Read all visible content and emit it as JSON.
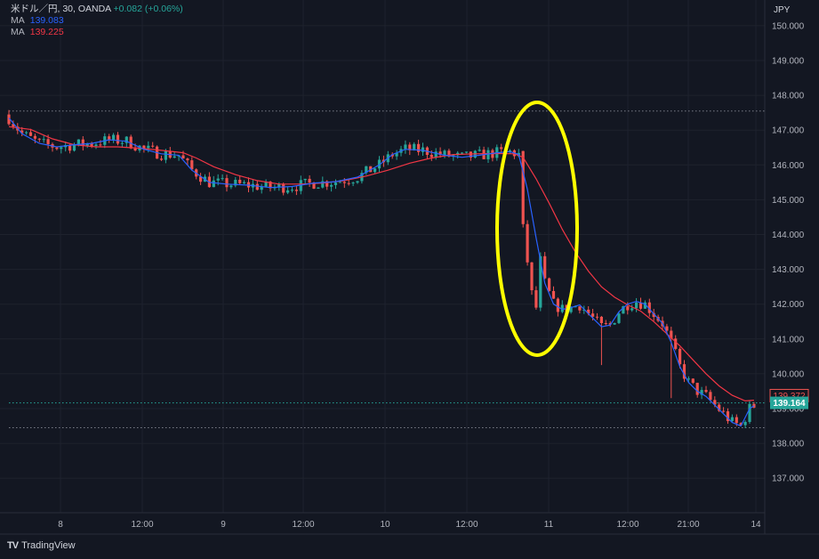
{
  "header": {
    "symbol": "米ドル／円, 30, OANDA",
    "change": "+0.082 (+0.06%)",
    "ma1_label": "MA",
    "ma1_value": "139.083",
    "ma2_label": "MA",
    "ma2_value": "139.225"
  },
  "brand": {
    "logo": "TV",
    "name": "TradingView"
  },
  "colors": {
    "up": "#26a69a",
    "down": "#ef5350",
    "ma_fast": "#2962ff",
    "ma_slow": "#f23645",
    "highlight": "#ffff00",
    "bg": "#131722"
  },
  "chart_data": {
    "type": "candlestick",
    "currency": "JPY",
    "ylim": [
      136.5,
      150.3
    ],
    "y_ticks": [
      "137.000",
      "138.000",
      "139.000",
      "140.000",
      "141.000",
      "142.000",
      "143.000",
      "144.000",
      "145.000",
      "146.000",
      "147.000",
      "148.000",
      "149.000",
      "150.000"
    ],
    "x_ticks": [
      "8",
      "12:00",
      "9",
      "12:00",
      "10",
      "12:00",
      "11",
      "12:00",
      "21:00",
      "14"
    ],
    "price_labels": [
      {
        "value": "139.372",
        "price": 139.372,
        "style": "outline"
      },
      {
        "value": "139.164",
        "price": 139.164,
        "style": "filled"
      }
    ],
    "dotted_levels": [
      147.55,
      139.164,
      138.45
    ],
    "highlight": "ellipse around the sharp drop on day 11",
    "ma_fast": [
      [
        0,
        147.35
      ],
      [
        3,
        146.9
      ],
      [
        7,
        146.62
      ],
      [
        11,
        146.52
      ],
      [
        15,
        146.58
      ],
      [
        19,
        146.62
      ],
      [
        23,
        146.72
      ],
      [
        27,
        146.68
      ],
      [
        31,
        146.45
      ],
      [
        35,
        146.32
      ],
      [
        39,
        146.28
      ],
      [
        42,
        145.85
      ],
      [
        46,
        145.5
      ],
      [
        50,
        145.45
      ],
      [
        55,
        145.42
      ],
      [
        60,
        145.35
      ],
      [
        65,
        145.38
      ],
      [
        70,
        145.48
      ],
      [
        75,
        145.52
      ],
      [
        80,
        145.65
      ],
      [
        85,
        146.0
      ],
      [
        88,
        146.3
      ],
      [
        91,
        146.45
      ],
      [
        95,
        146.42
      ],
      [
        100,
        146.28
      ],
      [
        104,
        146.22
      ],
      [
        108,
        146.28
      ],
      [
        112,
        146.35
      ],
      [
        115,
        146.38
      ],
      [
        117,
        146.3
      ],
      [
        119,
        145.3
      ],
      [
        121,
        143.9
      ],
      [
        123,
        142.6
      ],
      [
        125,
        142.0
      ],
      [
        127,
        141.85
      ],
      [
        129,
        141.9
      ],
      [
        131,
        141.98
      ],
      [
        134,
        141.6
      ],
      [
        136,
        141.35
      ],
      [
        138,
        141.4
      ],
      [
        140,
        141.78
      ],
      [
        142,
        142.0
      ],
      [
        144,
        142.08
      ],
      [
        146,
        142.0
      ],
      [
        148,
        141.72
      ],
      [
        150,
        141.45
      ],
      [
        152,
        140.9
      ],
      [
        154,
        140.2
      ],
      [
        156,
        139.75
      ],
      [
        158,
        139.5
      ],
      [
        160,
        139.35
      ],
      [
        162,
        139.1
      ],
      [
        164,
        138.85
      ],
      [
        166,
        138.6
      ],
      [
        168,
        138.5
      ],
      [
        170,
        139.0
      ],
      [
        171,
        139.08
      ]
    ],
    "ma_slow": [
      [
        0,
        147.1
      ],
      [
        5,
        147.02
      ],
      [
        10,
        146.75
      ],
      [
        15,
        146.58
      ],
      [
        20,
        146.52
      ],
      [
        25,
        146.52
      ],
      [
        30,
        146.48
      ],
      [
        35,
        146.42
      ],
      [
        40,
        146.35
      ],
      [
        43,
        146.2
      ],
      [
        47,
        145.95
      ],
      [
        52,
        145.72
      ],
      [
        57,
        145.55
      ],
      [
        62,
        145.45
      ],
      [
        67,
        145.45
      ],
      [
        72,
        145.48
      ],
      [
        77,
        145.55
      ],
      [
        82,
        145.68
      ],
      [
        87,
        145.85
      ],
      [
        92,
        146.05
      ],
      [
        97,
        146.2
      ],
      [
        102,
        146.3
      ],
      [
        107,
        146.32
      ],
      [
        112,
        146.33
      ],
      [
        116,
        146.32
      ],
      [
        118,
        146.22
      ],
      [
        121,
        145.6
      ],
      [
        124,
        144.9
      ],
      [
        127,
        144.15
      ],
      [
        130,
        143.5
      ],
      [
        133,
        142.95
      ],
      [
        136,
        142.5
      ],
      [
        139,
        142.2
      ],
      [
        142,
        141.98
      ],
      [
        145,
        141.8
      ],
      [
        148,
        141.5
      ],
      [
        151,
        141.15
      ],
      [
        154,
        140.8
      ],
      [
        157,
        140.4
      ],
      [
        160,
        140.0
      ],
      [
        163,
        139.65
      ],
      [
        166,
        139.38
      ],
      [
        169,
        139.22
      ],
      [
        171,
        139.24
      ]
    ]
  }
}
